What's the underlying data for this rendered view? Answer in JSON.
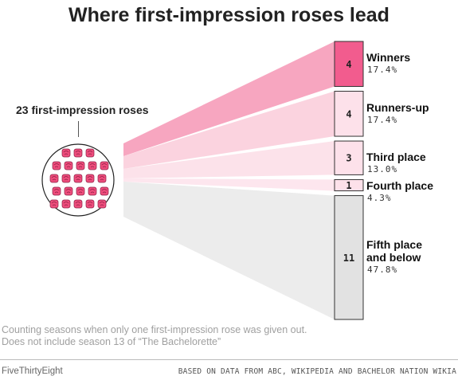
{
  "header": {
    "title": "Where first-impression roses lead"
  },
  "source_group": {
    "label": "23 first-impression roses",
    "count": 23
  },
  "chart_data": {
    "type": "bar",
    "title": "Where first-impression roses lead",
    "total": 23,
    "categories": [
      "Winners",
      "Runners-up",
      "Third place",
      "Fourth place",
      "Fifth place and below"
    ],
    "values": [
      4,
      4,
      3,
      1,
      11
    ],
    "percent_labels": [
      "17.4%",
      "17.4%",
      "13.0%",
      "4.3%",
      "47.8%"
    ],
    "bar_colors": [
      "#f25c8e",
      "#fde1ea",
      "#fde1ea",
      "#fde1ea",
      "#e2e2e2"
    ],
    "flow_colors": [
      "#f7a6c0",
      "#fbd3df",
      "#fce2ea",
      "#fde6ee",
      "#ececec"
    ]
  },
  "footer": {
    "note": "Counting seasons when only one first-impression rose was given out. Does not include season 13 of “The Bachelorette”",
    "brand": "FiveThirtyEight",
    "credit": "BASED ON DATA FROM ABC, WIKIPEDIA AND BACHELOR NATION WIKIA"
  }
}
